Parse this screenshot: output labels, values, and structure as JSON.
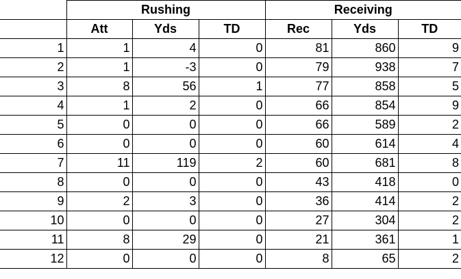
{
  "groups": {
    "rushing": "Rushing",
    "receiving": "Receiving"
  },
  "columns": [
    "Att",
    "Yds",
    "TD",
    "Rec",
    "Yds",
    "TD"
  ],
  "rows": [
    [
      "1",
      "1",
      "4",
      "0",
      "81",
      "860",
      "9"
    ],
    [
      "2",
      "1",
      "-3",
      "0",
      "79",
      "938",
      "7"
    ],
    [
      "3",
      "8",
      "56",
      "1",
      "77",
      "858",
      "5"
    ],
    [
      "4",
      "1",
      "2",
      "0",
      "66",
      "854",
      "9"
    ],
    [
      "5",
      "0",
      "0",
      "0",
      "66",
      "589",
      "2"
    ],
    [
      "6",
      "0",
      "0",
      "0",
      "60",
      "614",
      "4"
    ],
    [
      "7",
      "11",
      "119",
      "2",
      "60",
      "681",
      "8"
    ],
    [
      "8",
      "0",
      "0",
      "0",
      "43",
      "418",
      "0"
    ],
    [
      "9",
      "2",
      "3",
      "0",
      "36",
      "414",
      "2"
    ],
    [
      "10",
      "0",
      "0",
      "0",
      "27",
      "304",
      "2"
    ],
    [
      "11",
      "8",
      "29",
      "0",
      "21",
      "361",
      "1"
    ],
    [
      "12",
      "0",
      "0",
      "0",
      "8",
      "65",
      "2"
    ]
  ]
}
